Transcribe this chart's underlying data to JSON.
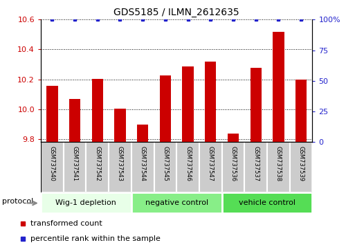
{
  "title": "GDS5185 / ILMN_2612635",
  "samples": [
    "GSM737540",
    "GSM737541",
    "GSM737542",
    "GSM737543",
    "GSM737544",
    "GSM737545",
    "GSM737546",
    "GSM737547",
    "GSM737536",
    "GSM737537",
    "GSM737538",
    "GSM737539"
  ],
  "bar_values": [
    10.155,
    10.07,
    10.205,
    10.005,
    9.895,
    10.225,
    10.285,
    10.32,
    9.835,
    10.275,
    10.52,
    10.2
  ],
  "percentile_values": [
    100,
    100,
    100,
    100,
    100,
    100,
    100,
    100,
    100,
    100,
    100,
    100
  ],
  "bar_color": "#cc0000",
  "percentile_color": "#2222cc",
  "ylim_left": [
    9.78,
    10.6
  ],
  "ylim_right": [
    0,
    100
  ],
  "yticks_left": [
    9.8,
    10.0,
    10.2,
    10.4,
    10.6
  ],
  "yticks_right": [
    0,
    25,
    50,
    75,
    100
  ],
  "groups": [
    {
      "label": "Wig-1 depletion",
      "indices": [
        0,
        3
      ],
      "color": "#e8ffe8"
    },
    {
      "label": "negative control",
      "indices": [
        4,
        7
      ],
      "color": "#88ee88"
    },
    {
      "label": "vehicle control",
      "indices": [
        8,
        11
      ],
      "color": "#55dd55"
    }
  ],
  "protocol_label": "protocol",
  "legend_items": [
    {
      "color": "#cc0000",
      "label": "transformed count"
    },
    {
      "color": "#2222cc",
      "label": "percentile rank within the sample"
    }
  ],
  "background_color": "#ffffff",
  "bar_width": 0.5,
  "cell_bg": "#cccccc",
  "cell_border": "#ffffff"
}
